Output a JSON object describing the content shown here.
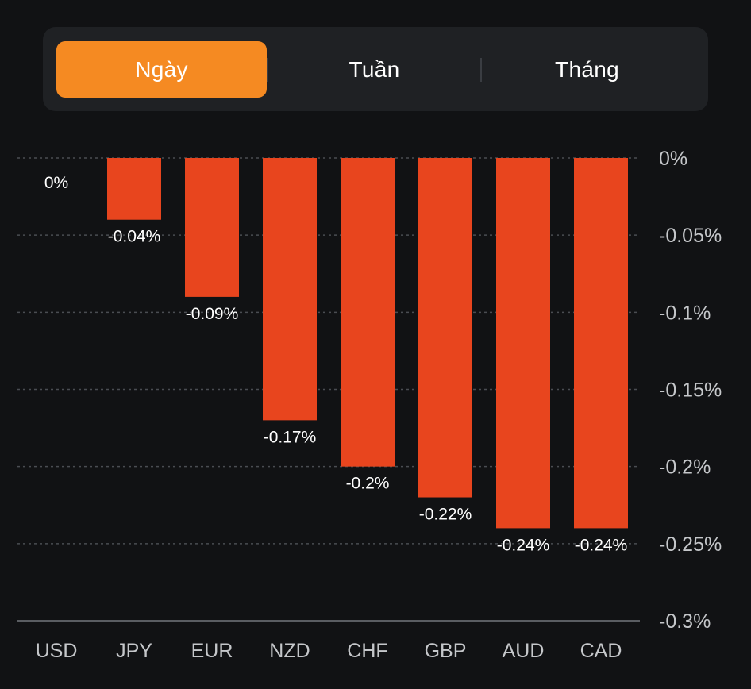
{
  "tabs": [
    {
      "label": "Ngày",
      "active": true
    },
    {
      "label": "Tuần",
      "active": false
    },
    {
      "label": "Tháng",
      "active": false
    }
  ],
  "colors": {
    "accent": "#f58a22",
    "bar": "#e8451e",
    "background": "#111214",
    "segment_bg": "#1f2124",
    "grid": "#4a4d52",
    "axis_text": "#c5c7ca",
    "label_text": "#ffffff"
  },
  "chart_data": {
    "type": "bar",
    "categories": [
      "USD",
      "JPY",
      "EUR",
      "NZD",
      "CHF",
      "GBP",
      "AUD",
      "CAD"
    ],
    "values": [
      0,
      -0.04,
      -0.09,
      -0.17,
      -0.2,
      -0.22,
      -0.24,
      -0.24
    ],
    "data_labels": [
      "0%",
      "-0.04%",
      "-0.09%",
      "-0.17%",
      "-0.2%",
      "-0.22%",
      "-0.24%",
      "-0.24%"
    ],
    "y_ticks": [
      0,
      -0.05,
      -0.1,
      -0.15,
      -0.2,
      -0.25,
      -0.3
    ],
    "y_tick_labels": [
      "0%",
      "-0.05%",
      "-0.1%",
      "-0.15%",
      "-0.2%",
      "-0.25%",
      "-0.3%"
    ],
    "ylim": [
      -0.3,
      0
    ],
    "y_axis_position": "right",
    "grid": true,
    "grid_style": "dotted",
    "legend": "none"
  }
}
